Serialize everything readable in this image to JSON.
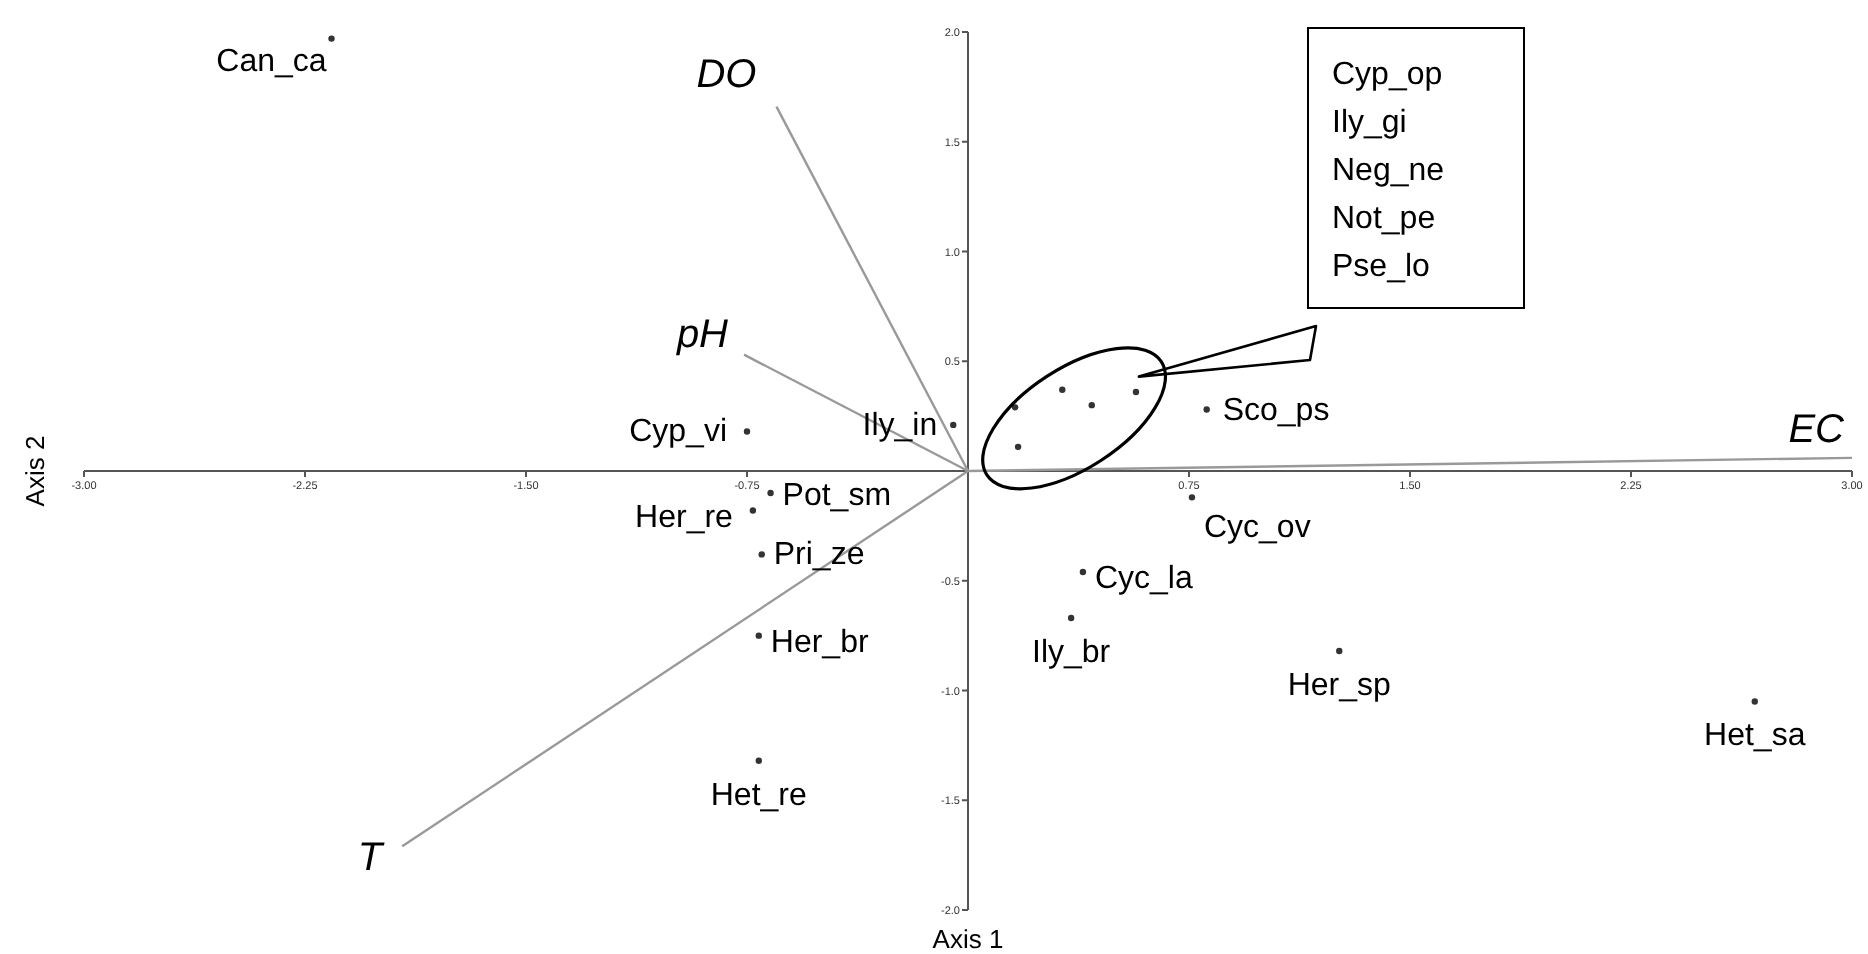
{
  "chart_data": {
    "type": "scatter",
    "xlabel": "Axis 1",
    "ylabel": "Axis 2",
    "xlim": [
      -3,
      3
    ],
    "ylim": [
      -2,
      2
    ],
    "xticks": [
      {
        "value": -3,
        "label": "-3.00"
      },
      {
        "value": -2.25,
        "label": "-2.25"
      },
      {
        "value": -1.5,
        "label": "-1.50"
      },
      {
        "value": -0.75,
        "label": "-0.75"
      },
      {
        "value": 0.75,
        "label": "0.75"
      },
      {
        "value": 1.5,
        "label": "1.50"
      },
      {
        "value": 2.25,
        "label": "2.25"
      },
      {
        "value": 3,
        "label": "3.00"
      }
    ],
    "yticks": [
      {
        "value": 2,
        "label": "2.0"
      },
      {
        "value": 1.5,
        "label": "1.5"
      },
      {
        "value": 1,
        "label": "1.0"
      },
      {
        "value": 0.5,
        "label": "0.5"
      },
      {
        "value": -0.5,
        "label": "-0.5"
      },
      {
        "value": -1,
        "label": "-1.0"
      },
      {
        "value": -1.5,
        "label": "-1.5"
      },
      {
        "value": -2,
        "label": "-2.0"
      }
    ],
    "grid": false,
    "legend": false,
    "series": [
      {
        "marker": "circle",
        "color": "#333333",
        "x": [
          -2.16,
          -0.75,
          -0.05,
          -0.67,
          -0.73,
          -0.7,
          -0.71,
          -0.71,
          0.35,
          0.39,
          0.76,
          0.81,
          1.26,
          2.67,
          0.16,
          0.17,
          0.32,
          0.42,
          0.57
        ],
        "values": [
          1.97,
          0.18,
          0.21,
          -0.1,
          -0.18,
          -0.38,
          -0.75,
          -1.32,
          -0.67,
          -0.46,
          -0.12,
          0.28,
          -0.82,
          -1.05,
          0.29,
          0.11,
          0.37,
          0.3,
          0.36
        ]
      },
      {
        "type": "line",
        "name": "DO",
        "color": "#999999",
        "x": [
          0,
          -0.65
        ],
        "values": [
          0,
          1.66
        ]
      },
      {
        "type": "line",
        "name": "pH",
        "color": "#999999",
        "x": [
          0,
          -0.76
        ],
        "values": [
          0,
          0.53
        ]
      },
      {
        "type": "line",
        "name": "EC",
        "color": "#999999",
        "x": [
          0,
          3.0
        ],
        "values": [
          0,
          0.06
        ]
      },
      {
        "type": "line",
        "name": "T",
        "color": "#999999",
        "x": [
          0,
          -1.92
        ],
        "values": [
          0,
          -1.71
        ]
      }
    ],
    "annotations": [
      {
        "text": "Can_ca",
        "x": -2.16,
        "y": 1.97
      },
      {
        "text": "Cyp_vi",
        "x": -0.75,
        "y": 0.18
      },
      {
        "text": "Ily_in",
        "x": -0.05,
        "y": 0.21
      },
      {
        "text": "Pot_sm",
        "x": -0.67,
        "y": -0.1
      },
      {
        "text": "Her_re",
        "x": -0.73,
        "y": -0.18
      },
      {
        "text": "Pri_ze",
        "x": -0.7,
        "y": -0.38
      },
      {
        "text": "Her_br",
        "x": -0.71,
        "y": -0.75
      },
      {
        "text": "Het_re",
        "x": -0.71,
        "y": -1.32
      },
      {
        "text": "Ily_br",
        "x": 0.35,
        "y": -0.67
      },
      {
        "text": "Cyc_la",
        "x": 0.39,
        "y": -0.46
      },
      {
        "text": "Cyc_ov",
        "x": 0.76,
        "y": -0.12
      },
      {
        "text": "Sco_ps",
        "x": 0.81,
        "y": 0.28
      },
      {
        "text": "Her_sp",
        "x": 1.26,
        "y": -0.82
      },
      {
        "text": "Het_sa",
        "x": 2.67,
        "y": -1.05
      },
      "Cyp_op",
      "Ily_gi",
      "Neg_ne",
      "Not_pe",
      "Pse_lo"
    ]
  }
}
